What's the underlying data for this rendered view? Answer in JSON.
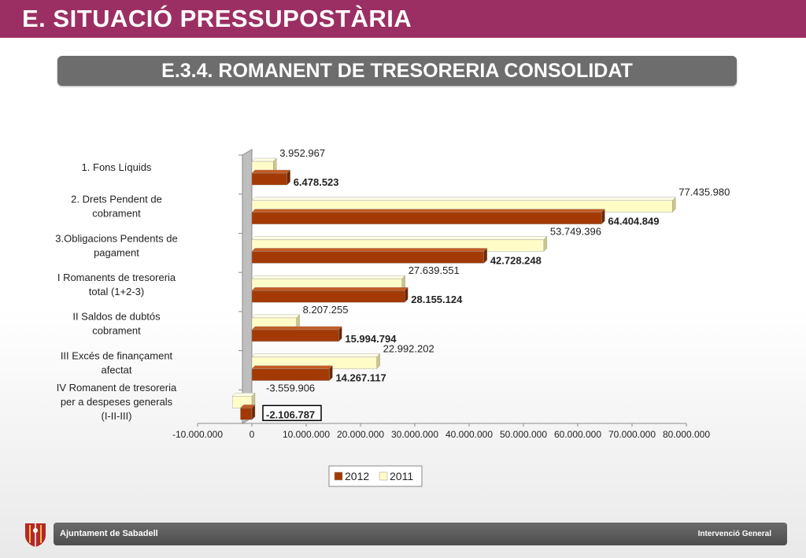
{
  "header": {
    "title": "E. SITUACIÓ PRESSUPOSTÀRIA",
    "subtitle": "E.3.4. ROMANENT DE TRESORERIA CONSOLIDAT"
  },
  "footer": {
    "left_text": "Ajuntament de Sabadell",
    "right_text": "Intervenció General"
  },
  "colors": {
    "brand": "#9b2f63",
    "bar_2012": "#a33a05",
    "bar_2011": "#fffcc8"
  },
  "chart_data": {
    "type": "bar",
    "orientation": "horizontal",
    "categories": [
      "1. Fons Líquids",
      "2. Drets Pendent de cobrament",
      "3.Obligacions Pendents de pagament",
      "I Romanents de tresoreria total (1+2-3)",
      "II Saldos de dubtós cobrament",
      "III Excés de finançament afectat",
      "IV Romanent de tresoreria per a despeses generals (I-II-III)"
    ],
    "series": [
      {
        "name": "2012",
        "values": [
          6478523,
          64404849,
          42728248,
          28155124,
          15994794,
          14267117,
          -2106787
        ],
        "labels": [
          "6.478.523",
          "64.404.849",
          "42.728.248",
          "28.155.124",
          "15.994.794",
          "14.267.117",
          "-2.106.787"
        ]
      },
      {
        "name": "2011",
        "values": [
          3952967,
          77435980,
          53749396,
          27639551,
          8207255,
          22992202,
          -3559906
        ],
        "labels": [
          "3.952.967",
          "77.435.980",
          "53.749.396",
          "27.639.551",
          "8.207.255",
          "22.992.202",
          "-3.559.906"
        ]
      }
    ],
    "xlim": [
      -10000000,
      80000000
    ],
    "xticks": [
      -10000000,
      0,
      10000000,
      20000000,
      30000000,
      40000000,
      50000000,
      60000000,
      70000000,
      80000000
    ],
    "xtick_labels": [
      "-10.000.000",
      "0",
      "10.000.000",
      "20.000.000",
      "30.000.000",
      "40.000.000",
      "50.000.000",
      "60.000.000",
      "70.000.000",
      "80.000.000"
    ],
    "legend": {
      "position": "bottom",
      "entries": [
        "2012",
        "2011"
      ]
    },
    "grid": false
  }
}
